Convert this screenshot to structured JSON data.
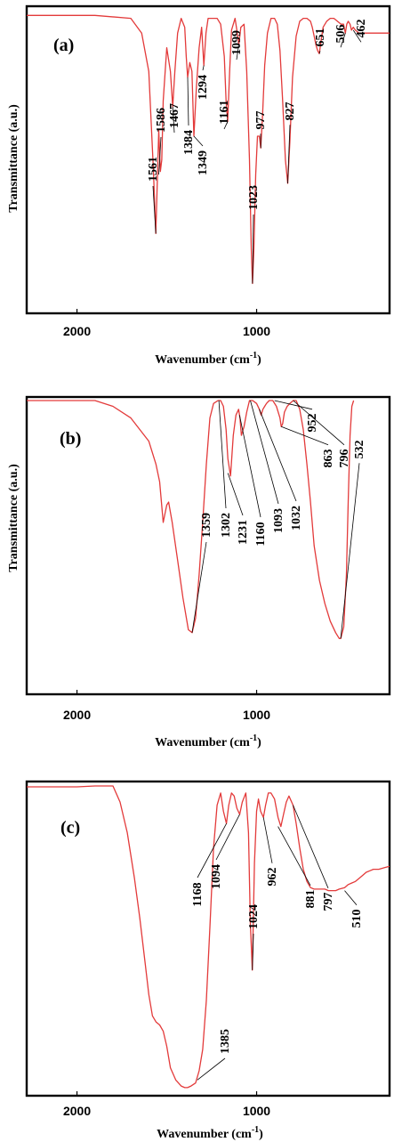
{
  "colors": {
    "spectrum": "#e33a3a",
    "frame": "#000000"
  },
  "chart_data": [
    {
      "type": "line",
      "panel_label": "(a)",
      "xlabel": "Wavenumber (cm",
      "xlabel_sup": "-1",
      "xlabel_end": ")",
      "ylabel": "Transmittance (a.u.)",
      "xlim": [
        2280,
        260
      ],
      "x_reversed": true,
      "xticks": [
        2000,
        1000
      ],
      "xtick_labels": [
        "2000",
        "1000"
      ],
      "grid": false,
      "series": [
        {
          "x": [
            2280,
            1900,
            1700,
            1640,
            1600,
            1575,
            1561,
            1552,
            1545,
            1536,
            1528,
            1520,
            1500,
            1480,
            1467,
            1455,
            1440,
            1420,
            1400,
            1392,
            1384,
            1372,
            1360,
            1349,
            1335,
            1320,
            1306,
            1294,
            1282,
            1270,
            1250,
            1220,
            1200,
            1180,
            1170,
            1161,
            1150,
            1140,
            1120,
            1110,
            1099,
            1088,
            1070,
            1055,
            1040,
            1030,
            1023,
            1015,
            1005,
            995,
            985,
            977,
            967,
            955,
            940,
            920,
            900,
            885,
            870,
            855,
            840,
            827,
            815,
            800,
            780,
            760,
            740,
            720,
            700,
            690,
            680,
            670,
            660,
            651,
            642,
            630,
            610,
            590,
            570,
            550,
            530,
            516,
            506,
            498,
            490,
            480,
            472,
            462,
            450,
            430,
            400,
            360,
            320,
            280,
            260
          ],
          "y": [
            0.01,
            0.01,
            0.02,
            0.07,
            0.2,
            0.53,
            0.75,
            0.56,
            0.4,
            0.54,
            0.5,
            0.3,
            0.12,
            0.2,
            0.32,
            0.2,
            0.07,
            0.02,
            0.05,
            0.15,
            0.22,
            0.17,
            0.2,
            0.42,
            0.25,
            0.12,
            0.05,
            0.18,
            0.07,
            0.02,
            0.02,
            0.02,
            0.04,
            0.15,
            0.3,
            0.37,
            0.2,
            0.06,
            0.02,
            0.06,
            0.11,
            0.05,
            0.04,
            0.2,
            0.5,
            0.8,
            0.92,
            0.8,
            0.55,
            0.42,
            0.42,
            0.46,
            0.35,
            0.18,
            0.07,
            0.02,
            0.02,
            0.04,
            0.13,
            0.3,
            0.5,
            0.58,
            0.44,
            0.22,
            0.08,
            0.03,
            0.02,
            0.02,
            0.03,
            0.05,
            0.08,
            0.11,
            0.13,
            0.14,
            0.1,
            0.05,
            0.03,
            0.02,
            0.02,
            0.03,
            0.04,
            0.04,
            0.07,
            0.04,
            0.03,
            0.04,
            0.06,
            0.05,
            0.06,
            0.07,
            0.07,
            0.07,
            0.07,
            0.07,
            0.07
          ]
        }
      ],
      "annotations": [
        {
          "text": "1561",
          "x": 1561,
          "y": 0.75
        },
        {
          "text": "1586",
          "x": 1545,
          "y": 0.55
        },
        {
          "text": "1467",
          "x": 1467,
          "y": 0.32
        },
        {
          "text": "1384",
          "x": 1384,
          "y": 0.22
        },
        {
          "text": "1349",
          "x": 1349,
          "y": 0.42
        },
        {
          "text": "1294",
          "x": 1294,
          "y": 0.18
        },
        {
          "text": "1161",
          "x": 1161,
          "y": 0.37
        },
        {
          "text": "1099",
          "x": 1099,
          "y": 0.11
        },
        {
          "text": "1023",
          "x": 1023,
          "y": 0.92
        },
        {
          "text": "977",
          "x": 977,
          "y": 0.46
        },
        {
          "text": "827",
          "x": 827,
          "y": 0.58
        },
        {
          "text": "651",
          "x": 651,
          "y": 0.14
        },
        {
          "text": "506",
          "x": 506,
          "y": 0.07
        },
        {
          "text": "462",
          "x": 462,
          "y": 0.06
        }
      ]
    },
    {
      "type": "line",
      "panel_label": "(b)",
      "xlabel": "Wavenumber (cm",
      "xlabel_sup": "-1",
      "xlabel_end": ")",
      "ylabel": "Transmittance (a.u.)",
      "xlim": [
        2280,
        260
      ],
      "x_reversed": true,
      "xticks": [
        2000,
        1000
      ],
      "xtick_labels": [
        "2000",
        "1000"
      ],
      "grid": false,
      "series": [
        {
          "x": [
            2280,
            1900,
            1800,
            1700,
            1650,
            1600,
            1560,
            1540,
            1520,
            1500,
            1490,
            1470,
            1440,
            1410,
            1380,
            1359,
            1340,
            1320,
            1300,
            1280,
            1260,
            1240,
            1215,
            1200,
            1185,
            1170,
            1160,
            1145,
            1130,
            1115,
            1100,
            1093,
            1085,
            1070,
            1055,
            1040,
            1032,
            1022,
            1000,
            985,
            975,
            965,
            955,
            945,
            930,
            910,
            890,
            870,
            863,
            855,
            845,
            830,
            815,
            796,
            780,
            760,
            740,
            720,
            700,
            680,
            650,
            620,
            590,
            560,
            540,
            532,
            515,
            500,
            490,
            480,
            470,
            460
          ],
          "y": [
            0.0,
            0.0,
            0.02,
            0.06,
            0.1,
            0.14,
            0.22,
            0.28,
            0.42,
            0.36,
            0.35,
            0.42,
            0.55,
            0.68,
            0.79,
            0.8,
            0.75,
            0.6,
            0.42,
            0.22,
            0.06,
            0.01,
            0.0,
            0.0,
            0.02,
            0.1,
            0.2,
            0.26,
            0.12,
            0.05,
            0.03,
            0.06,
            0.12,
            0.09,
            0.04,
            0.0,
            0.0,
            0.0,
            0.01,
            0.03,
            0.05,
            0.03,
            0.02,
            0.01,
            0.0,
            0.0,
            0.02,
            0.06,
            0.09,
            0.08,
            0.04,
            0.02,
            0.01,
            0.0,
            0.0,
            0.03,
            0.1,
            0.22,
            0.35,
            0.5,
            0.62,
            0.7,
            0.76,
            0.8,
            0.82,
            0.82,
            0.78,
            0.6,
            0.35,
            0.12,
            0.02,
            0.0
          ]
        }
      ],
      "annotations": [
        {
          "text": "1359",
          "x": 1359,
          "y": 0.8
        },
        {
          "text": "1302",
          "x": 1210,
          "y": 0.0
        },
        {
          "text": "1231",
          "x": 1160,
          "y": 0.25
        },
        {
          "text": "1160",
          "x": 1095,
          "y": 0.05
        },
        {
          "text": "1093",
          "x": 1035,
          "y": 0.0
        },
        {
          "text": "1032",
          "x": 985,
          "y": 0.03
        },
        {
          "text": "952",
          "x": 900,
          "y": 0.0
        },
        {
          "text": "863",
          "x": 863,
          "y": 0.09
        },
        {
          "text": "796",
          "x": 796,
          "y": 0.0
        },
        {
          "text": "532",
          "x": 532,
          "y": 0.82
        }
      ]
    },
    {
      "type": "line",
      "panel_label": "(c)",
      "xlabel": "Wavenumber (cm",
      "xlabel_sup": "-1",
      "xlabel_end": ")",
      "ylabel": "",
      "xlim": [
        2280,
        260
      ],
      "x_reversed": true,
      "xticks": [
        2000,
        1000
      ],
      "xtick_labels": [
        "2000",
        "1000"
      ],
      "grid": false,
      "series": [
        {
          "x": [
            2280,
            2000,
            1900,
            1800,
            1760,
            1720,
            1680,
            1650,
            1620,
            1600,
            1580,
            1560,
            1540,
            1520,
            1500,
            1480,
            1450,
            1420,
            1400,
            1385,
            1365,
            1340,
            1320,
            1300,
            1280,
            1260,
            1240,
            1220,
            1200,
            1185,
            1168,
            1155,
            1140,
            1125,
            1110,
            1094,
            1080,
            1060,
            1045,
            1035,
            1024,
            1012,
            1000,
            990,
            978,
            962,
            950,
            935,
            920,
            900,
            881,
            865,
            850,
            835,
            820,
            797,
            780,
            760,
            740,
            720,
            700,
            680,
            660,
            640,
            620,
            600,
            580,
            560,
            540,
            510,
            490,
            470,
            450,
            430,
            410,
            390,
            370,
            350,
            320,
            290,
            260
          ],
          "y": [
            0.0,
            0.0,
            -0.003,
            -0.003,
            0.05,
            0.15,
            0.3,
            0.43,
            0.58,
            0.68,
            0.75,
            0.77,
            0.78,
            0.8,
            0.85,
            0.92,
            0.96,
            0.98,
            0.985,
            0.985,
            0.98,
            0.97,
            0.93,
            0.86,
            0.7,
            0.46,
            0.2,
            0.06,
            0.02,
            0.08,
            0.12,
            0.06,
            0.02,
            0.03,
            0.07,
            0.09,
            0.05,
            0.02,
            0.15,
            0.45,
            0.6,
            0.25,
            0.08,
            0.04,
            0.08,
            0.1,
            0.06,
            0.02,
            0.02,
            0.04,
            0.1,
            0.13,
            0.09,
            0.05,
            0.03,
            0.06,
            0.12,
            0.2,
            0.27,
            0.31,
            0.33,
            0.335,
            0.335,
            0.335,
            0.335,
            0.34,
            0.34,
            0.34,
            0.335,
            0.33,
            0.32,
            0.315,
            0.31,
            0.3,
            0.29,
            0.28,
            0.275,
            0.27,
            0.27,
            0.265,
            0.26
          ]
        }
      ],
      "annotations": [
        {
          "text": "1385",
          "x": 1330,
          "y": 0.96
        },
        {
          "text": "1168",
          "x": 1168,
          "y": 0.12
        },
        {
          "text": "1094",
          "x": 1094,
          "y": 0.09
        },
        {
          "text": "1024",
          "x": 1024,
          "y": 0.6
        },
        {
          "text": "962",
          "x": 962,
          "y": 0.1
        },
        {
          "text": "881",
          "x": 881,
          "y": 0.13
        },
        {
          "text": "797",
          "x": 797,
          "y": 0.06
        },
        {
          "text": "510",
          "x": 510,
          "y": 0.34
        }
      ]
    }
  ]
}
